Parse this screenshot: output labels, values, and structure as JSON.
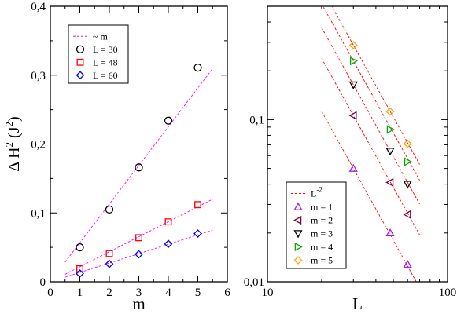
{
  "chart_data": [
    {
      "type": "scatter",
      "xlabel": "m",
      "ylabel": "Δ H² (J²)",
      "ylabel_parts": {
        "main": "Δ H",
        "sup1": "2",
        "paren_open": " (J",
        "sup2": "2",
        "paren_close": ")"
      },
      "xlim": [
        0,
        6
      ],
      "ylim": [
        0,
        0.4
      ],
      "xscale": "linear",
      "yscale": "linear",
      "x_ticks": [
        0,
        1,
        2,
        3,
        4,
        5,
        6
      ],
      "x_tick_labels": [
        "0",
        "1",
        "2",
        "3",
        "4",
        "5",
        "6"
      ],
      "y_ticks": [
        0,
        0.1,
        0.2,
        0.3,
        0.4
      ],
      "y_tick_labels": [
        "0",
        "0,1",
        "0,2",
        "0,3",
        "0,4"
      ],
      "grid": false,
      "legend_position": "top-left",
      "fit_lines": [
        {
          "name": "~ m",
          "color": "#ff00ff",
          "dash": "dashed",
          "x": [
            0.5,
            5.5
          ],
          "y": [
            0.0286,
            0.3094
          ]
        },
        {
          "name": "",
          "color": "#ff00ff",
          "dash": "dashed",
          "x": [
            0.5,
            5.5
          ],
          "y": [
            0.0109,
            0.1199
          ]
        },
        {
          "name": "",
          "color": "#ff00ff",
          "dash": "dashed",
          "x": [
            0.5,
            5.5
          ],
          "y": [
            0.0068,
            0.0749
          ]
        }
      ],
      "series": [
        {
          "name": "L = 30",
          "marker": "circle",
          "color": "#000000",
          "x": [
            1,
            2,
            3,
            4,
            5
          ],
          "y": [
            0.05,
            0.105,
            0.166,
            0.234,
            0.311
          ]
        },
        {
          "name": "L = 48",
          "marker": "square",
          "color": "#ff0000",
          "x": [
            1,
            2,
            3,
            4,
            5
          ],
          "y": [
            0.019,
            0.041,
            0.064,
            0.087,
            0.112
          ]
        },
        {
          "name": "L = 60",
          "marker": "diamond",
          "color": "#0000ff",
          "x": [
            1,
            2,
            3,
            4,
            5
          ],
          "y": [
            0.012,
            0.026,
            0.04,
            0.055,
            0.07
          ]
        }
      ]
    },
    {
      "type": "scatter",
      "xlabel": "L",
      "ylabel": "",
      "xlim": [
        10,
        100
      ],
      "ylim": [
        0.01,
        0.5
      ],
      "xscale": "log",
      "yscale": "log",
      "x_ticks": [
        10,
        100
      ],
      "x_tick_labels": [
        "10",
        "100"
      ],
      "y_ticks": [
        0.01,
        0.1
      ],
      "y_tick_labels": [
        "0,01",
        "0,1"
      ],
      "grid": false,
      "legend_position": "bottom-left",
      "fit_lines": [
        {
          "name": "L⁻²",
          "label_main": "L",
          "label_sup": "-2",
          "color": "#ff0000",
          "dash": "dashed",
          "x": [
            20,
            70
          ],
          "y": [
            0.1125,
            0.00918
          ]
        },
        {
          "name": "",
          "color": "#ff0000",
          "dash": "dashed",
          "x": [
            20,
            70
          ],
          "y": [
            0.2385,
            0.01947
          ]
        },
        {
          "name": "",
          "color": "#ff0000",
          "dash": "dashed",
          "x": [
            20,
            70
          ],
          "y": [
            0.369,
            0.03012
          ]
        },
        {
          "name": "",
          "color": "#ff0000",
          "dash": "dashed",
          "x": [
            20,
            70
          ],
          "y": [
            0.5175,
            0.04224
          ]
        },
        {
          "name": "",
          "color": "#ff0000",
          "dash": "dashed",
          "x": [
            20,
            70
          ],
          "y": [
            0.648,
            0.0529
          ]
        }
      ],
      "series": [
        {
          "name": "m = 1",
          "marker": "triangle-up",
          "color": "#a020f0",
          "x": [
            30,
            48,
            60
          ],
          "y": [
            0.05,
            0.02,
            0.0128
          ]
        },
        {
          "name": "m = 2",
          "marker": "triangle-left",
          "color": "#800040",
          "x": [
            30,
            48,
            60
          ],
          "y": [
            0.106,
            0.041,
            0.026
          ]
        },
        {
          "name": "m = 3",
          "marker": "triangle-down",
          "color": "#000000",
          "x": [
            30,
            48,
            60
          ],
          "y": [
            0.164,
            0.064,
            0.04
          ]
        },
        {
          "name": "m = 4",
          "marker": "triangle-right",
          "color": "#00aa00",
          "x": [
            30,
            48,
            60
          ],
          "y": [
            0.23,
            0.087,
            0.055
          ]
        },
        {
          "name": "m = 5",
          "marker": "diamond",
          "color": "#ffa500",
          "x": [
            30,
            48,
            60
          ],
          "y": [
            0.288,
            0.112,
            0.071
          ]
        }
      ]
    }
  ]
}
